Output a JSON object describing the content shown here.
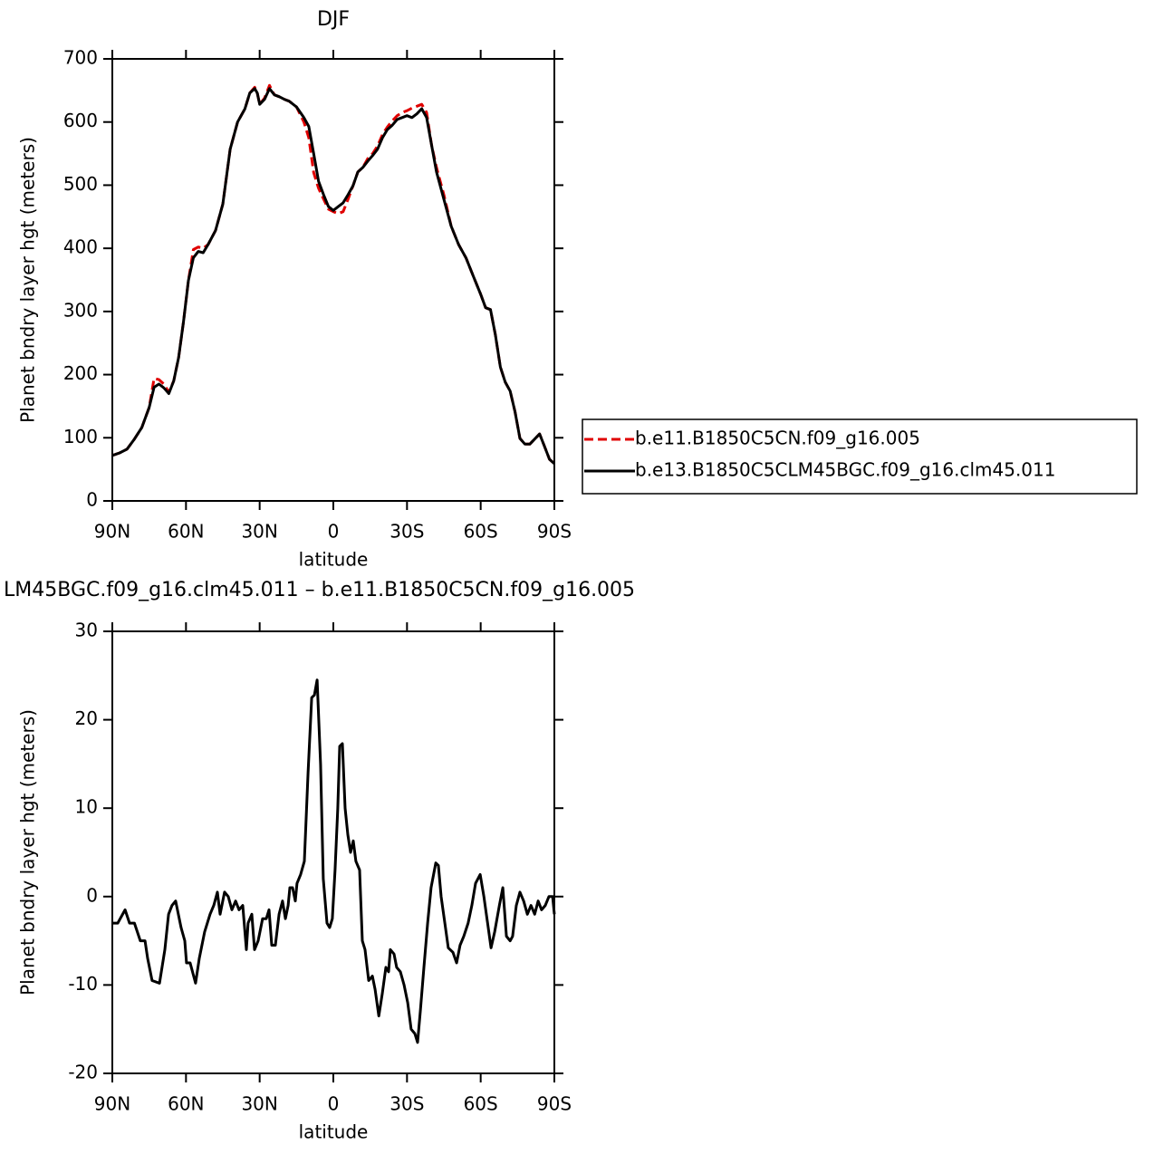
{
  "chart_data": [
    {
      "type": "line",
      "title": "DJF",
      "xlabel": "latitude",
      "ylabel": "Planet bndry layer hgt (meters)",
      "xlim": [
        90,
        -90
      ],
      "ylim": [
        0,
        700
      ],
      "xticks": [
        {
          "value": 90,
          "label": "90N"
        },
        {
          "value": 60,
          "label": "60N"
        },
        {
          "value": 30,
          "label": "30N"
        },
        0,
        {
          "value": -30,
          "label": "30S"
        },
        {
          "value": -60,
          "label": "60S"
        },
        {
          "value": -90,
          "label": "90S"
        }
      ],
      "yticks": [
        0,
        100,
        200,
        300,
        400,
        500,
        600,
        700
      ],
      "legend_position": "right",
      "x": [
        90,
        87,
        84,
        81,
        78,
        75,
        73,
        71,
        69,
        67,
        65,
        63,
        61,
        59,
        57,
        55,
        53,
        51,
        48,
        45,
        42,
        39,
        36,
        34,
        32,
        31,
        30,
        28,
        26,
        24,
        22,
        20,
        18,
        15,
        12,
        10,
        8,
        6,
        4,
        2,
        0,
        -2,
        -4,
        -6,
        -8,
        -10,
        -12,
        -14,
        -16,
        -18,
        -20,
        -22,
        -24,
        -26,
        -28,
        -30,
        -32,
        -34,
        -36,
        -38,
        -40,
        -42,
        -45,
        -48,
        -51,
        -54,
        -57,
        -60,
        -62,
        -64,
        -66,
        -68,
        -70,
        -72,
        -74,
        -76,
        -78,
        -80,
        -82,
        -84,
        -86,
        -88,
        -90
      ],
      "series": [
        {
          "name": "b.e11.B1850C5CN.f09_g16.005",
          "color": "#e00000",
          "linestyle": "dashed",
          "values": [
            72,
            76,
            82,
            98,
            116,
            148,
            194,
            192,
            185,
            172,
            190,
            227,
            284,
            349,
            398,
            402,
            400,
            406,
            428,
            470,
            557,
            600,
            621,
            646,
            655,
            646,
            628,
            638,
            658,
            643,
            640,
            636,
            633,
            624,
            600,
            575,
            520,
            495,
            478,
            462,
            458,
            455,
            458,
            478,
            499,
            521,
            528,
            542,
            550,
            562,
            580,
            592,
            602,
            610,
            615,
            618,
            622,
            625,
            628,
            615,
            564,
            528,
            485,
            435,
            406,
            385,
            356,
            327,
            306,
            303,
            263,
            212,
            188,
            174,
            141,
            99,
            90,
            90,
            98,
            106,
            86,
            66,
            59
          ]
        },
        {
          "name": "b.e13.B1850C5CLM45BGC.f09_g16.clm45.011",
          "color": "#000000",
          "linestyle": "solid",
          "values": [
            72,
            76,
            82,
            98,
            116,
            148,
            180,
            185,
            179,
            170,
            190,
            227,
            284,
            349,
            385,
            395,
            393,
            406,
            428,
            470,
            557,
            600,
            621,
            646,
            653,
            646,
            628,
            636,
            653,
            643,
            640,
            636,
            633,
            624,
            607,
            593,
            550,
            506,
            485,
            466,
            460,
            466,
            472,
            485,
            499,
            521,
            528,
            538,
            547,
            557,
            575,
            588,
            595,
            604,
            607,
            610,
            607,
            613,
            621,
            607,
            564,
            521,
            478,
            435,
            406,
            385,
            356,
            327,
            306,
            303,
            263,
            212,
            188,
            174,
            141,
            99,
            90,
            90,
            98,
            106,
            86,
            66,
            59
          ]
        }
      ]
    },
    {
      "type": "line",
      "title": "LM45BGC.f09_g16.clm45.011 – b.e11.B1850C5CN.f09_g16.005",
      "xlabel": "latitude",
      "ylabel": "Planet bndry layer hgt (meters)",
      "xlim": [
        90,
        -90
      ],
      "ylim": [
        -20,
        30
      ],
      "xticks": [
        {
          "value": 90,
          "label": "90N"
        },
        {
          "value": 60,
          "label": "60N"
        },
        {
          "value": 30,
          "label": "30N"
        },
        0,
        {
          "value": -30,
          "label": "30S"
        },
        {
          "value": -60,
          "label": "60S"
        },
        {
          "value": -90,
          "label": "90S"
        }
      ],
      "yticks": [
        -20,
        -10,
        0,
        10,
        20,
        30
      ],
      "x": [
        90,
        87.8,
        84.8,
        83,
        81,
        78.6,
        76.7,
        75.6,
        73.8,
        70.8,
        68.6,
        67.1,
        65.7,
        64.2,
        62,
        60.5,
        59.8,
        58.3,
        56.1,
        54.6,
        52.4,
        50.2,
        48.7,
        47.2,
        46.1,
        44.3,
        42.8,
        41.3,
        39.8,
        38.4,
        36.9,
        35.4,
        34.7,
        33.2,
        32.1,
        30.6,
        28.8,
        27.3,
        26.2,
        25.1,
        23.6,
        22.1,
        20.7,
        19.5,
        18.4,
        17.7,
        16.6,
        15.5,
        14.8,
        13.3,
        11.8,
        10.3,
        8.8,
        7.7,
        6.6,
        5.2,
        4.1,
        2.6,
        1.5,
        0.4,
        -0.7,
        -1.8,
        -2.6,
        -3.7,
        -4.8,
        -5.9,
        -7,
        -8.1,
        -9.2,
        -10.7,
        -11.8,
        -12.9,
        -14.4,
        -15.9,
        -17,
        -18.5,
        -19.9,
        -21.4,
        -22.5,
        -23.2,
        -24.7,
        -25.8,
        -27.3,
        -28.8,
        -30.3,
        -31.7,
        -33.2,
        -34.3,
        -35.4,
        -36.9,
        -38.4,
        -39.8,
        -41.7,
        -42.8,
        -43.9,
        -45.4,
        -46.8,
        -48.7,
        -50.2,
        -51.6,
        -53.1,
        -54.9,
        -56.4,
        -57.9,
        -59.8,
        -61.3,
        -62.8,
        -64.2,
        -65.7,
        -67.6,
        -69,
        -70.5,
        -72,
        -73,
        -74.5,
        -76,
        -77.5,
        -79,
        -80.5,
        -82,
        -83.4,
        -84.8,
        -86.3,
        -87.8,
        -89.3,
        -90
      ],
      "series": [
        {
          "color": "#000000",
          "linestyle": "solid",
          "values": [
            -3,
            -3,
            -1.5,
            -3,
            -3,
            -5,
            -5,
            -7,
            -9.5,
            -9.8,
            -6,
            -2,
            -1,
            -0.5,
            -3.5,
            -5,
            -7.5,
            -7.5,
            -9.8,
            -7,
            -4,
            -2,
            -1,
            0.5,
            -2,
            0.5,
            0,
            -1.5,
            -0.5,
            -1.5,
            -1,
            -6,
            -3,
            -2,
            -6,
            -5,
            -2.5,
            -2.5,
            -1.5,
            -5.5,
            -5.5,
            -2,
            -0.5,
            -2.5,
            -1,
            1,
            1,
            -0.5,
            1.5,
            2.5,
            4,
            14,
            22.5,
            22.8,
            24.5,
            15,
            2,
            -3,
            -3.5,
            -2.5,
            3,
            10,
            17,
            17.3,
            10,
            7,
            5,
            6.3,
            4,
            3,
            -5,
            -6,
            -9.5,
            -9,
            -10.5,
            -13.5,
            -11,
            -8,
            -8.5,
            -6,
            -6.5,
            -8,
            -8.5,
            -10,
            -12,
            -15,
            -15.5,
            -16.5,
            -13,
            -8,
            -3,
            1,
            3.8,
            3.5,
            0,
            -3,
            -5.8,
            -6.3,
            -7.5,
            -5.5,
            -4.5,
            -3,
            -1,
            1.5,
            2.5,
            0,
            -3,
            -5.8,
            -4,
            -1,
            1,
            -4.5,
            -5,
            -4.5,
            -1,
            0.5,
            -0.5,
            -2,
            -1,
            -2,
            -0.5,
            -1.5,
            -1,
            0,
            0,
            -2
          ]
        }
      ]
    }
  ]
}
